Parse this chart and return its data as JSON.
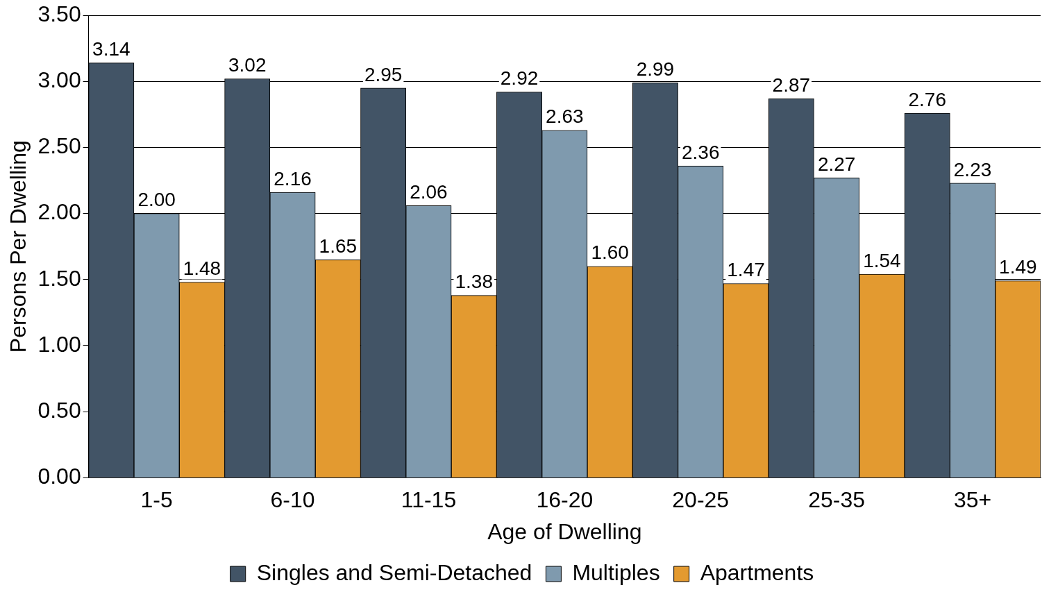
{
  "chart_data": {
    "type": "bar",
    "xlabel": "Age of Dwelling",
    "ylabel": "Persons Per Dwelling",
    "categories": [
      "1-5",
      "6-10",
      "11-15",
      "16-20",
      "20-25",
      "25-35",
      "35+"
    ],
    "series": [
      {
        "name": "Singles and Semi-Detached",
        "color": "#425466",
        "values": [
          3.14,
          3.02,
          2.95,
          2.92,
          2.99,
          2.87,
          2.76
        ],
        "value_labels": [
          "3.14",
          "3.02",
          "2.95",
          "2.92",
          "2.99",
          "2.87",
          "2.76"
        ]
      },
      {
        "name": "Multiples",
        "color": "#7f9aae",
        "values": [
          2.0,
          2.16,
          2.06,
          2.63,
          2.36,
          2.27,
          2.23
        ],
        "value_labels": [
          "2.00",
          "2.16",
          "2.06",
          "2.63",
          "2.36",
          "2.27",
          "2.23"
        ]
      },
      {
        "name": "Apartments",
        "color": "#e39a30",
        "values": [
          1.48,
          1.65,
          1.38,
          1.6,
          1.47,
          1.54,
          1.49
        ],
        "value_labels": [
          "1.48",
          "1.65",
          "1.38",
          "1.60",
          "1.47",
          "1.54",
          "1.49"
        ]
      }
    ],
    "ylim": [
      0,
      3.5
    ],
    "yticks": [
      {
        "value": 0,
        "label": "0.00"
      },
      {
        "value": 0.5,
        "label": "0.50"
      },
      {
        "value": 1,
        "label": "1.00"
      },
      {
        "value": 1.5,
        "label": "1.50"
      },
      {
        "value": 2,
        "label": "2.00"
      },
      {
        "value": 2.5,
        "label": "2.50"
      },
      {
        "value": 3,
        "label": "3.00"
      },
      {
        "value": 3.5,
        "label": "3.50"
      }
    ],
    "grid": "y",
    "legend": "bottom"
  }
}
